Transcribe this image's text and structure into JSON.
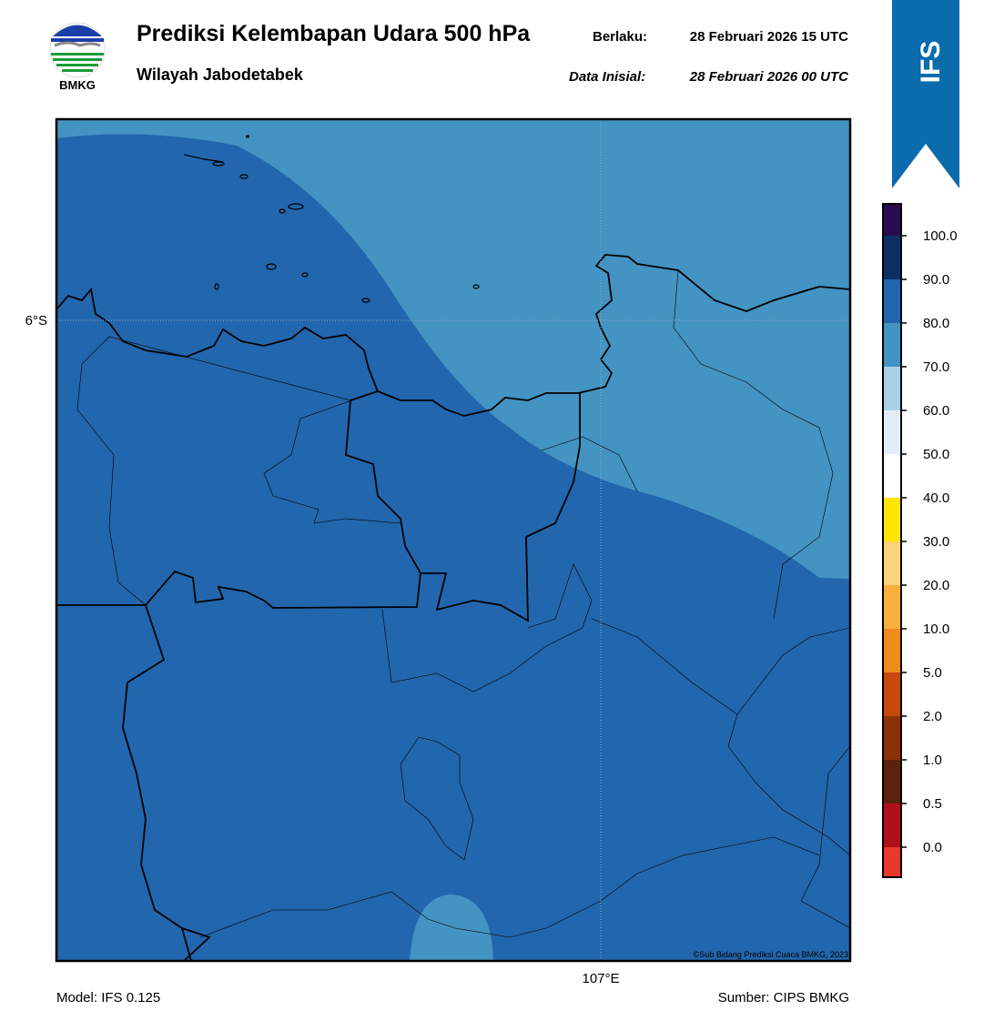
{
  "header": {
    "title": "Prediksi Kelembapan Udara 500 hPa",
    "subtitle": "Wilayah Jabodetabek",
    "valid_label": "Berlaku:",
    "valid_time": "28 Februari 2026 15 UTC",
    "init_label": "Data Inisial:",
    "init_time": "28 Februari 2026 00 UTC",
    "logo_text": "BMKG",
    "badge": "IFS"
  },
  "map": {
    "lat_label": "6°S",
    "lon_label": "107°E",
    "copyright": "©Sub Bidang Prediksi Cuaca BMKG, 2023"
  },
  "colorbar": {
    "labels": [
      "0.0",
      "0.5",
      "1.0",
      "2.0",
      "5.0",
      "10.0",
      "20.0",
      "30.0",
      "40.0",
      "50.0",
      "60.0",
      "70.0",
      "80.0",
      "90.0",
      "100.0"
    ],
    "colors": [
      "#e8392c",
      "#b0101a",
      "#5c220d",
      "#8a3108",
      "#c4490a",
      "#ef8a1f",
      "#f9b03c",
      "#fdd377",
      "#ffe600",
      "#ffffff",
      "#e3eef8",
      "#a8d1e6",
      "#4393c3",
      "#2166ac",
      "#0b2f63",
      "#2b0b4f"
    ]
  },
  "footer": {
    "model": "Model: IFS 0.125",
    "source": "Sumber: CIPS BMKG"
  }
}
